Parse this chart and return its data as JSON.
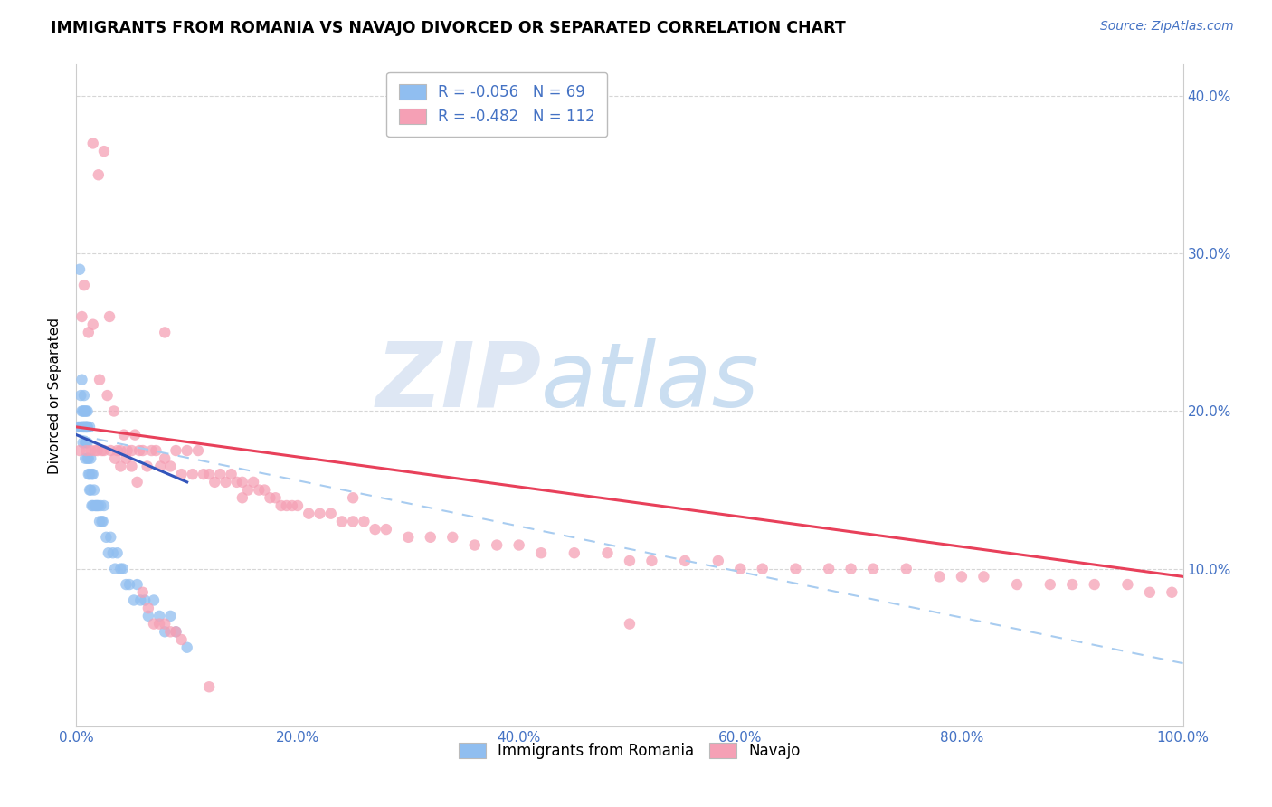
{
  "title": "IMMIGRANTS FROM ROMANIA VS NAVAJO DIVORCED OR SEPARATED CORRELATION CHART",
  "source": "Source: ZipAtlas.com",
  "ylabel": "Divorced or Separated",
  "xlim": [
    0.0,
    1.0
  ],
  "ylim": [
    0.0,
    0.42
  ],
  "legend_r1": "R = -0.056",
  "legend_n1": "N = 69",
  "legend_r2": "R = -0.482",
  "legend_n2": "N = 112",
  "color_blue": "#90BEF0",
  "color_pink": "#F5A0B5",
  "color_blue_line": "#3355BB",
  "color_pink_line": "#E8405A",
  "color_blue_dashed": "#A8CCF0",
  "watermark_zip": "ZIP",
  "watermark_atlas": "atlas",
  "watermark_color_zip": "#C8D8EE",
  "watermark_color_atlas": "#A8C8E8",
  "romania_x": [
    0.002,
    0.003,
    0.004,
    0.004,
    0.005,
    0.005,
    0.005,
    0.006,
    0.006,
    0.006,
    0.007,
    0.007,
    0.007,
    0.007,
    0.008,
    0.008,
    0.008,
    0.008,
    0.009,
    0.009,
    0.009,
    0.009,
    0.01,
    0.01,
    0.01,
    0.01,
    0.01,
    0.011,
    0.011,
    0.012,
    0.012,
    0.012,
    0.013,
    0.013,
    0.014,
    0.014,
    0.015,
    0.015,
    0.016,
    0.017,
    0.018,
    0.019,
    0.02,
    0.021,
    0.022,
    0.023,
    0.024,
    0.025,
    0.027,
    0.029,
    0.031,
    0.033,
    0.035,
    0.037,
    0.04,
    0.042,
    0.045,
    0.048,
    0.052,
    0.055,
    0.058,
    0.062,
    0.065,
    0.07,
    0.075,
    0.08,
    0.085,
    0.09,
    0.1
  ],
  "romania_y": [
    0.19,
    0.29,
    0.19,
    0.21,
    0.19,
    0.2,
    0.22,
    0.19,
    0.2,
    0.18,
    0.2,
    0.19,
    0.21,
    0.19,
    0.2,
    0.19,
    0.17,
    0.18,
    0.19,
    0.18,
    0.2,
    0.19,
    0.19,
    0.18,
    0.17,
    0.2,
    0.19,
    0.17,
    0.16,
    0.19,
    0.16,
    0.15,
    0.17,
    0.15,
    0.16,
    0.14,
    0.16,
    0.14,
    0.15,
    0.14,
    0.14,
    0.14,
    0.14,
    0.13,
    0.14,
    0.13,
    0.13,
    0.14,
    0.12,
    0.11,
    0.12,
    0.11,
    0.1,
    0.11,
    0.1,
    0.1,
    0.09,
    0.09,
    0.08,
    0.09,
    0.08,
    0.08,
    0.07,
    0.08,
    0.07,
    0.06,
    0.07,
    0.06,
    0.05
  ],
  "navajo_x": [
    0.003,
    0.005,
    0.007,
    0.009,
    0.011,
    0.013,
    0.015,
    0.017,
    0.019,
    0.021,
    0.023,
    0.025,
    0.028,
    0.031,
    0.034,
    0.037,
    0.04,
    0.043,
    0.046,
    0.05,
    0.053,
    0.057,
    0.06,
    0.064,
    0.068,
    0.072,
    0.076,
    0.08,
    0.085,
    0.09,
    0.095,
    0.1,
    0.105,
    0.11,
    0.115,
    0.12,
    0.125,
    0.13,
    0.135,
    0.14,
    0.145,
    0.15,
    0.155,
    0.16,
    0.165,
    0.17,
    0.175,
    0.18,
    0.185,
    0.19,
    0.195,
    0.2,
    0.21,
    0.22,
    0.23,
    0.24,
    0.25,
    0.26,
    0.27,
    0.28,
    0.3,
    0.32,
    0.34,
    0.36,
    0.38,
    0.4,
    0.42,
    0.45,
    0.48,
    0.5,
    0.52,
    0.55,
    0.58,
    0.6,
    0.62,
    0.65,
    0.68,
    0.7,
    0.72,
    0.75,
    0.78,
    0.8,
    0.82,
    0.85,
    0.88,
    0.9,
    0.92,
    0.95,
    0.97,
    0.99,
    0.015,
    0.02,
    0.025,
    0.03,
    0.035,
    0.04,
    0.045,
    0.05,
    0.055,
    0.06,
    0.065,
    0.07,
    0.075,
    0.08,
    0.085,
    0.09,
    0.095,
    0.12,
    0.5,
    0.25,
    0.15,
    0.08
  ],
  "navajo_y": [
    0.175,
    0.26,
    0.28,
    0.175,
    0.25,
    0.175,
    0.255,
    0.175,
    0.175,
    0.22,
    0.175,
    0.175,
    0.21,
    0.175,
    0.2,
    0.175,
    0.175,
    0.185,
    0.175,
    0.175,
    0.185,
    0.175,
    0.175,
    0.165,
    0.175,
    0.175,
    0.165,
    0.17,
    0.165,
    0.175,
    0.16,
    0.175,
    0.16,
    0.175,
    0.16,
    0.16,
    0.155,
    0.16,
    0.155,
    0.16,
    0.155,
    0.155,
    0.15,
    0.155,
    0.15,
    0.15,
    0.145,
    0.145,
    0.14,
    0.14,
    0.14,
    0.14,
    0.135,
    0.135,
    0.135,
    0.13,
    0.13,
    0.13,
    0.125,
    0.125,
    0.12,
    0.12,
    0.12,
    0.115,
    0.115,
    0.115,
    0.11,
    0.11,
    0.11,
    0.105,
    0.105,
    0.105,
    0.105,
    0.1,
    0.1,
    0.1,
    0.1,
    0.1,
    0.1,
    0.1,
    0.095,
    0.095,
    0.095,
    0.09,
    0.09,
    0.09,
    0.09,
    0.09,
    0.085,
    0.085,
    0.37,
    0.35,
    0.365,
    0.26,
    0.17,
    0.165,
    0.17,
    0.165,
    0.155,
    0.085,
    0.075,
    0.065,
    0.065,
    0.065,
    0.06,
    0.06,
    0.055,
    0.025,
    0.065,
    0.145,
    0.145,
    0.25
  ],
  "rom_trend_x0": 0.0,
  "rom_trend_x1": 0.1,
  "rom_trend_y0": 0.185,
  "rom_trend_y1": 0.155,
  "dash_trend_x0": 0.0,
  "dash_trend_x1": 1.0,
  "dash_trend_y0": 0.185,
  "dash_trend_y1": 0.04,
  "nav_trend_x0": 0.0,
  "nav_trend_x1": 1.0,
  "nav_trend_y0": 0.19,
  "nav_trend_y1": 0.095
}
